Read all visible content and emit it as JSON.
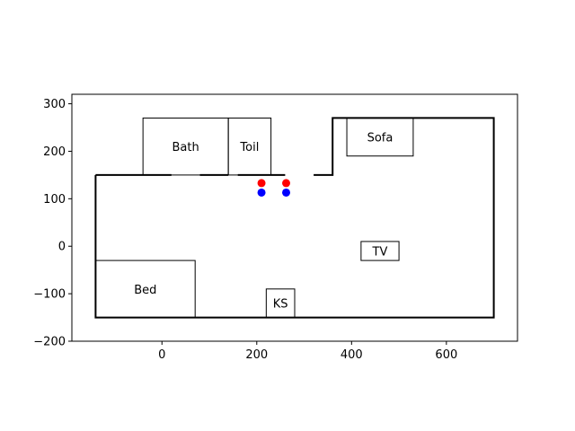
{
  "chart_data": {
    "type": "floorplan",
    "xlim": [
      -190,
      750
    ],
    "ylim": [
      -200,
      320
    ],
    "x_ticks": [
      0,
      200,
      400,
      600
    ],
    "y_ticks": [
      -200,
      -100,
      0,
      100,
      200,
      300
    ],
    "walls": [
      [
        [
          -140,
          150
        ],
        [
          -140,
          -150
        ],
        [
          700,
          -150
        ],
        [
          700,
          270
        ],
        [
          360,
          270
        ],
        [
          360,
          150
        ],
        [
          320,
          150
        ]
      ],
      [
        [
          260,
          150
        ],
        [
          160,
          150
        ]
      ],
      [
        [
          -140,
          150
        ],
        [
          20,
          150
        ]
      ],
      [
        [
          80,
          150
        ],
        [
          140,
          150
        ]
      ]
    ],
    "rooms": [
      {
        "label": "Bath",
        "x": -40,
        "y": 150,
        "w": 180,
        "h": 120
      },
      {
        "label": "Toil",
        "x": 140,
        "y": 150,
        "w": 90,
        "h": 120
      },
      {
        "label": "Sofa",
        "x": 390,
        "y": 190,
        "w": 140,
        "h": 80
      },
      {
        "label": "TV",
        "x": 420,
        "y": -30,
        "w": 80,
        "h": 40
      },
      {
        "label": "Bed",
        "x": -140,
        "y": -150,
        "w": 210,
        "h": 120
      },
      {
        "label": "KS",
        "x": 220,
        "y": -150,
        "w": 60,
        "h": 60
      }
    ],
    "points": [
      {
        "x": 210,
        "y": 133,
        "color": "#ff0000"
      },
      {
        "x": 262,
        "y": 133,
        "color": "#ff0000"
      },
      {
        "x": 210,
        "y": 113,
        "color": "#0000ff"
      },
      {
        "x": 262,
        "y": 113,
        "color": "#0000ff"
      }
    ]
  }
}
